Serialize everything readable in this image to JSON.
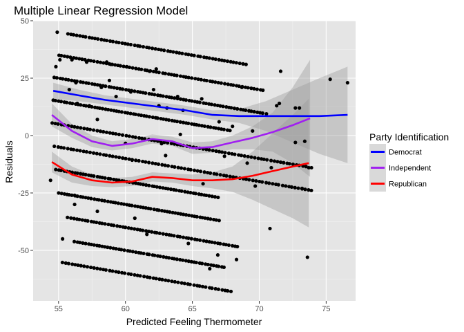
{
  "chart_data": {
    "type": "scatter",
    "title": "Multiple Linear Regression Model",
    "xlabel": "Predicted Feeling Thermometer",
    "ylabel": "Residuals",
    "xlim": [
      53.1,
      77.2
    ],
    "ylim": [
      -72,
      50
    ],
    "xticks": [
      55,
      60,
      65,
      70,
      75
    ],
    "yticks": [
      -50,
      -25,
      0,
      25,
      50
    ],
    "xtick_labels": [
      "55",
      "60",
      "65",
      "70",
      "75"
    ],
    "ytick_labels": [
      "-50",
      "-25",
      "0",
      "25",
      "50"
    ],
    "grid": true,
    "point_color": "#000000",
    "scatter_lines": [
      {
        "intercept": 45,
        "x_start": 55.7,
        "x_end": 69.0,
        "count": 60
      },
      {
        "intercept": 35,
        "x_start": 55.0,
        "x_end": 70.3,
        "count": 70
      },
      {
        "intercept": 25,
        "x_start": 54.7,
        "x_end": 70.5,
        "count": 75
      },
      {
        "intercept": 15,
        "x_start": 54.6,
        "x_end": 67.8,
        "count": 65
      },
      {
        "intercept": 5,
        "x_start": 54.5,
        "x_end": 73.5,
        "count": 80
      },
      {
        "intercept": -5,
        "x_start": 54.7,
        "x_end": 73.9,
        "count": 80
      },
      {
        "intercept": -15,
        "x_start": 54.8,
        "x_end": 66.9,
        "count": 60
      },
      {
        "intercept": -25,
        "x_start": 55.0,
        "x_end": 67.0,
        "count": 60
      },
      {
        "intercept": -35,
        "x_start": 55.7,
        "x_end": 68.4,
        "count": 60
      },
      {
        "intercept": -45,
        "x_start": 56.2,
        "x_end": 67.4,
        "count": 55
      },
      {
        "intercept": -55,
        "x_start": 55.3,
        "x_end": 67.9,
        "count": 55
      }
    ],
    "scatter_slope": -1,
    "scatter_pivot_x": 55,
    "extra_points": [
      [
        54.9,
        45
      ],
      [
        55.1,
        33
      ],
      [
        54.8,
        30
      ],
      [
        56.0,
        33
      ],
      [
        55.8,
        20
      ],
      [
        57.1,
        32
      ],
      [
        56.3,
        23
      ],
      [
        58.6,
        32
      ],
      [
        58.9,
        31
      ],
      [
        58.2,
        21
      ],
      [
        56.4,
        14
      ],
      [
        57.3,
        13
      ],
      [
        57.9,
        7
      ],
      [
        59.3,
        17
      ],
      [
        58.8,
        24
      ],
      [
        60.1,
        30
      ],
      [
        60.4,
        19
      ],
      [
        61.8,
        28
      ],
      [
        62.3,
        29
      ],
      [
        62.1,
        20
      ],
      [
        63.9,
        17
      ],
      [
        62.5,
        13
      ],
      [
        63.1,
        12
      ],
      [
        64.3,
        11
      ],
      [
        65.7,
        16
      ],
      [
        67.0,
        6
      ],
      [
        68.0,
        4
      ],
      [
        68.7,
        21
      ],
      [
        71.6,
        28
      ],
      [
        71.5,
        14
      ],
      [
        71.3,
        13
      ],
      [
        72.7,
        12
      ],
      [
        73.0,
        12
      ],
      [
        75.3,
        24.5
      ],
      [
        76.6,
        23
      ],
      [
        72.7,
        -3
      ],
      [
        73.4,
        -2.5
      ],
      [
        73.9,
        -14
      ],
      [
        73.7,
        -14
      ],
      [
        70.9,
        -14
      ],
      [
        73.2,
        -23
      ],
      [
        70.8,
        -40.5
      ],
      [
        73.6,
        -53
      ],
      [
        54.4,
        -19.5
      ],
      [
        55.3,
        -45
      ],
      [
        56.2,
        -30
      ],
      [
        57.9,
        -33
      ],
      [
        60.7,
        -36
      ],
      [
        61.6,
        -43
      ],
      [
        64.7,
        -47
      ],
      [
        66.3,
        -58
      ],
      [
        66.9,
        -52
      ],
      [
        68.3,
        -54
      ],
      [
        65.8,
        -21
      ],
      [
        67.4,
        -9
      ],
      [
        69.1,
        -12
      ],
      [
        69.7,
        -22
      ],
      [
        69.5,
        2
      ],
      [
        56.2,
        -26
      ],
      [
        64.1,
        0.5
      ],
      [
        62.7,
        -3.5
      ],
      [
        60.0,
        -3.4
      ],
      [
        63.0,
        -8.7
      ],
      [
        60.5,
        -10.7
      ]
    ],
    "series": [
      {
        "name": "Democrat",
        "color": "#0000ff",
        "x": [
          54.6,
          56.5,
          58.5,
          60.5,
          62.5,
          64.5,
          66.5,
          68.5,
          70.5,
          72.5,
          74.5,
          76.6
        ],
        "y": [
          19.5,
          17.5,
          15.5,
          14.0,
          12.5,
          11.0,
          9.0,
          8.5,
          8.5,
          8.5,
          8.5,
          9.0
        ],
        "ci_lower": [
          16.0,
          15.0,
          13.5,
          12.0,
          10.5,
          9.0,
          7.0,
          5.5,
          2.0,
          -3.0,
          -8.0,
          -12.0
        ],
        "ci_upper": [
          23.0,
          20.0,
          17.5,
          16.0,
          14.5,
          13.0,
          11.0,
          11.5,
          15.0,
          20.0,
          25.0,
          30.0
        ]
      },
      {
        "name": "Independent",
        "color": "#a020f0",
        "x": [
          54.5,
          56.0,
          57.5,
          59.0,
          60.5,
          62.0,
          63.5,
          65.0,
          66.5,
          68.0,
          69.5,
          71.0,
          72.5,
          73.8
        ],
        "y": [
          9.0,
          2.0,
          -2.5,
          -4.5,
          -3.5,
          -1.5,
          -2.5,
          -5.5,
          -5.0,
          -3.0,
          -1.0,
          1.5,
          4.5,
          7.5
        ],
        "ci_lower": [
          4.0,
          -1.0,
          -5.0,
          -6.5,
          -5.5,
          -3.5,
          -4.5,
          -8.0,
          -7.5,
          -6.0,
          -6.0,
          -7.0,
          -12.0,
          -18.0
        ],
        "ci_upper": [
          14.0,
          5.0,
          0.0,
          -2.5,
          -1.5,
          0.5,
          -0.5,
          -3.0,
          -2.5,
          0.0,
          4.0,
          10.0,
          21.0,
          33.0
        ]
      },
      {
        "name": "Republican",
        "color": "#ff0000",
        "x": [
          54.5,
          56.0,
          57.5,
          59.0,
          60.5,
          62.0,
          63.5,
          65.0,
          66.5,
          68.0,
          69.5,
          71.0,
          72.5,
          73.7
        ],
        "y": [
          -11.5,
          -17.0,
          -19.5,
          -20.5,
          -20.0,
          -18.0,
          -18.5,
          -19.5,
          -19.5,
          -19.0,
          -17.5,
          -15.5,
          -13.5,
          -12.0
        ],
        "ci_lower": [
          -16.0,
          -20.5,
          -22.0,
          -22.5,
          -22.0,
          -20.0,
          -20.5,
          -22.0,
          -23.0,
          -24.5,
          -28.0,
          -32.0,
          -36.0,
          -40.0
        ],
        "ci_upper": [
          -7.0,
          -13.5,
          -17.0,
          -18.5,
          -18.0,
          -16.0,
          -16.5,
          -17.0,
          -16.0,
          -13.5,
          -7.0,
          1.0,
          9.0,
          16.0
        ]
      }
    ],
    "legend": {
      "title": "Party Identification",
      "position": "right",
      "items": [
        "Democrat",
        "Independent",
        "Republican"
      ]
    }
  },
  "colors": {
    "panel_background": "#e5e5e5",
    "grid_major": "#ffffff",
    "ci_fill": "#999999",
    "legend_key_background": "#d9d9d9"
  }
}
